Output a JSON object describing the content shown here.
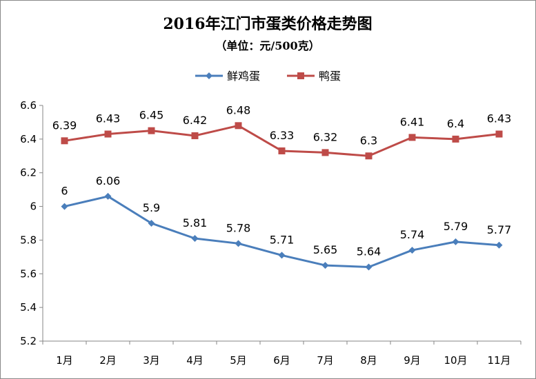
{
  "chart_data": {
    "type": "line",
    "title": "2016年江门市蛋类价格走势图",
    "subtitle": "（单位：元/500克）",
    "categories": [
      "1月",
      "2月",
      "3月",
      "4月",
      "5月",
      "6月",
      "7月",
      "8月",
      "9月",
      "10月",
      "11月"
    ],
    "series": [
      {
        "name": "鲜鸡蛋",
        "color": "#4A7EBB",
        "marker": "diamond",
        "values": [
          6,
          6.06,
          5.9,
          5.81,
          5.78,
          5.71,
          5.65,
          5.64,
          5.74,
          5.79,
          5.77
        ],
        "labels": [
          "6",
          "6.06",
          "5.9",
          "5.81",
          "5.78",
          "5.71",
          "5.65",
          "5.64",
          "5.74",
          "5.79",
          "5.77"
        ]
      },
      {
        "name": "鸭蛋",
        "color": "#BE4B48",
        "marker": "square",
        "values": [
          6.39,
          6.43,
          6.45,
          6.42,
          6.48,
          6.33,
          6.32,
          6.3,
          6.41,
          6.4,
          6.43
        ],
        "labels": [
          "6.39",
          "6.43",
          "6.45",
          "6.42",
          "6.48",
          "6.33",
          "6.32",
          "6.3",
          "6.41",
          "6.4",
          "6.43"
        ]
      }
    ],
    "ylim": [
      5.2,
      6.6
    ],
    "yticks": [
      "5.2",
      "5.4",
      "5.6",
      "5.8",
      "6",
      "6.2",
      "6.4",
      "6.6"
    ],
    "grid": false,
    "legend_position": "top-center",
    "xlabel": "",
    "ylabel": ""
  }
}
